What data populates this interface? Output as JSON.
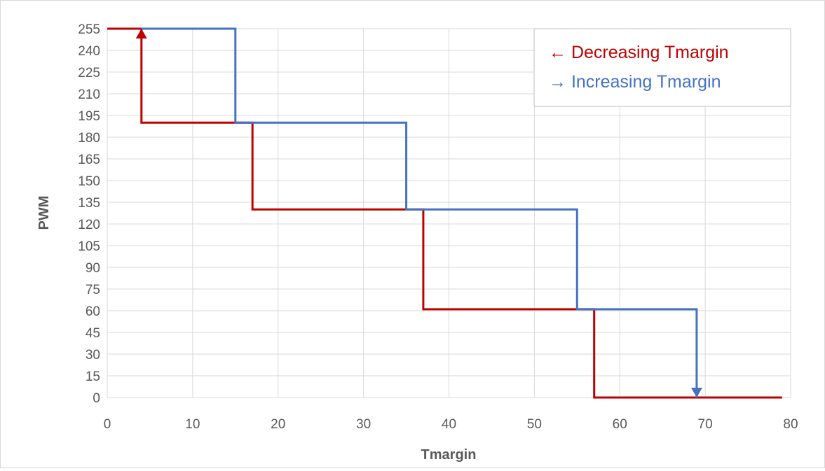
{
  "chart_data": {
    "type": "line",
    "xlabel": "Tmargin",
    "ylabel": "PWM",
    "xlim": [
      0,
      80
    ],
    "ylim": [
      0,
      255
    ],
    "x_ticks": [
      0,
      10,
      20,
      30,
      40,
      50,
      60,
      70,
      80
    ],
    "y_ticks": [
      0,
      15,
      30,
      45,
      60,
      75,
      90,
      105,
      120,
      135,
      150,
      165,
      180,
      195,
      210,
      225,
      240,
      255
    ],
    "grid": true,
    "legend_position": "top-right",
    "series": [
      {
        "name": "← Decreasing Tmargin",
        "color": "#c00000",
        "x": [
          79,
          57,
          57,
          37,
          37,
          17,
          17,
          4,
          4,
          0
        ],
        "y": [
          0,
          0,
          61,
          61,
          130,
          130,
          190,
          190,
          255,
          255
        ],
        "arrow": "end-vertical-up"
      },
      {
        "name": "→ Increasing Tmargin",
        "color": "#4472c4",
        "x": [
          4,
          15,
          15,
          35,
          35,
          55,
          55,
          69,
          69
        ],
        "y": [
          255,
          255,
          190,
          190,
          130,
          130,
          61,
          61,
          0
        ],
        "arrow": "end-vertical-down"
      }
    ]
  }
}
